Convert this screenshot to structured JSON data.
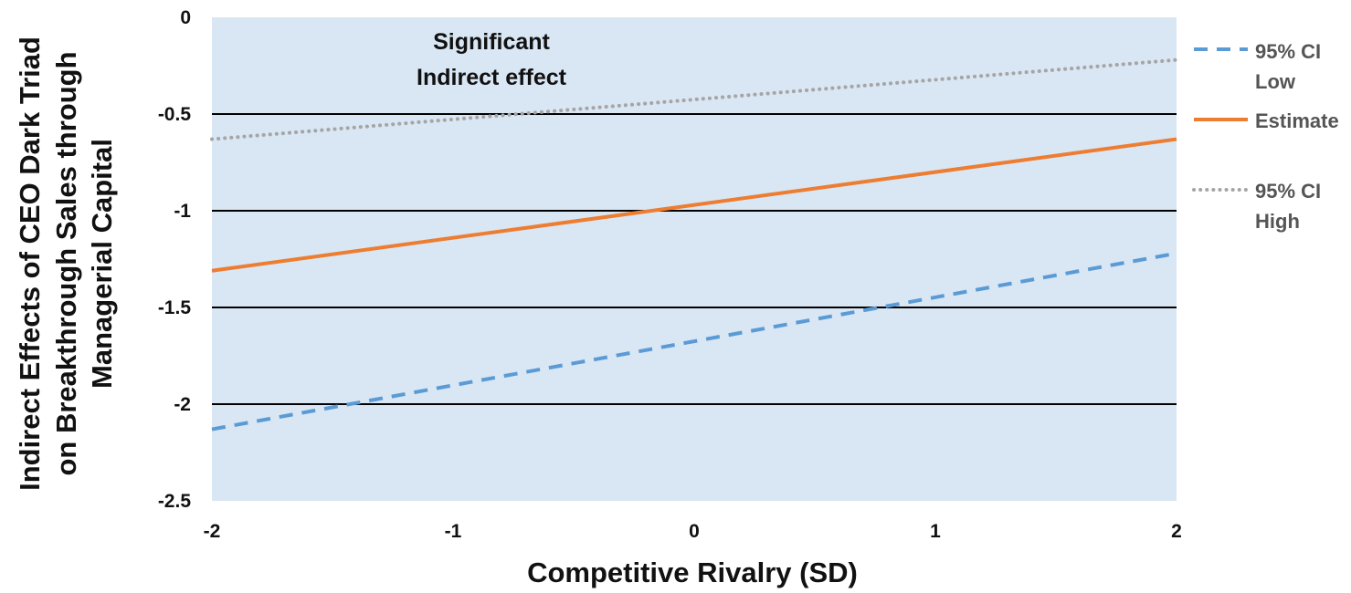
{
  "chart_data": {
    "type": "line",
    "title": "",
    "xlabel": "Competitive Rivalry (SD)",
    "ylabel": [
      "Indirect Effects of CEO Dark Triad",
      "on Breakthrough Sales through",
      "Managerial Capital"
    ],
    "xlim": [
      -2,
      2
    ],
    "ylim": [
      -2.5,
      0
    ],
    "x_ticks": [
      "-2",
      "-1",
      "0",
      "1",
      "2"
    ],
    "y_ticks": [
      "0",
      "-0.5",
      "-1",
      "-1.5",
      "-2",
      "-2.5"
    ],
    "x": [
      -2,
      2
    ],
    "series": [
      {
        "name": "95% CI Low",
        "legend_lines": [
          "95% CI",
          "Low"
        ],
        "values": [
          -2.13,
          -1.22
        ],
        "color": "#5B9BD5",
        "style": "dashed"
      },
      {
        "name": "Estimate",
        "legend_lines": [
          "Estimate"
        ],
        "values": [
          -1.31,
          -0.63
        ],
        "color": "#ED7D31",
        "style": "solid"
      },
      {
        "name": "95% CI High",
        "legend_lines": [
          "95% CI",
          "High"
        ],
        "values": [
          -0.63,
          -0.22
        ],
        "color": "#A5A5A5",
        "style": "dotted"
      }
    ],
    "annotation": [
      "Significant",
      "Indirect effect"
    ],
    "grid": true,
    "plot_background": "#D9E6F4",
    "gridline_color": "#000000"
  }
}
